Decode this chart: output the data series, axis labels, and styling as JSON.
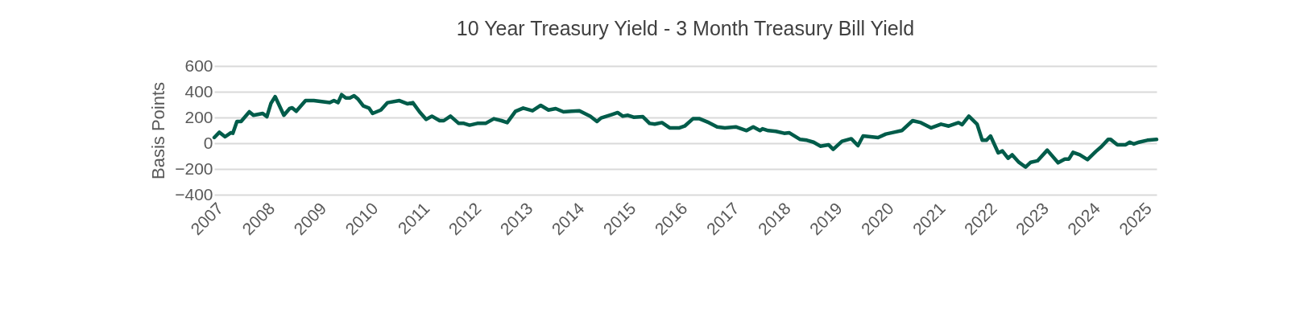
{
  "chart_data": {
    "type": "line",
    "title": "10 Year Treasury Yield - 3 Month Treasury Bill Yield",
    "ylabel": "Basis Points",
    "x": [
      2007.0,
      2007.1,
      2007.21,
      2007.32,
      2007.36,
      2007.44,
      2007.52,
      2007.68,
      2007.76,
      2007.94,
      2008.02,
      2008.1,
      2008.18,
      2008.35,
      2008.46,
      2008.51,
      2008.59,
      2008.77,
      2008.93,
      2009.24,
      2009.32,
      2009.4,
      2009.47,
      2009.55,
      2009.63,
      2009.71,
      2009.79,
      2009.89,
      2010.0,
      2010.07,
      2010.23,
      2010.36,
      2010.59,
      2010.75,
      2010.85,
      2010.98,
      2011.11,
      2011.22,
      2011.37,
      2011.45,
      2011.58,
      2011.74,
      2011.84,
      2011.95,
      2012.1,
      2012.26,
      2012.42,
      2012.57,
      2012.68,
      2012.84,
      2012.99,
      2013.17,
      2013.33,
      2013.48,
      2013.62,
      2013.77,
      2013.93,
      2014.08,
      2014.29,
      2014.42,
      2014.5,
      2014.71,
      2014.82,
      2014.92,
      2015.02,
      2015.13,
      2015.31,
      2015.44,
      2015.54,
      2015.68,
      2015.83,
      2016.02,
      2016.12,
      2016.28,
      2016.41,
      2016.59,
      2016.75,
      2016.9,
      2017.11,
      2017.32,
      2017.45,
      2017.58,
      2017.63,
      2017.74,
      2017.89,
      2018.05,
      2018.15,
      2018.36,
      2018.49,
      2018.62,
      2018.75,
      2018.91,
      2019.0,
      2019.17,
      2019.35,
      2019.48,
      2019.58,
      2019.87,
      2020.02,
      2020.18,
      2020.33,
      2020.54,
      2020.7,
      2020.9,
      2021.09,
      2021.24,
      2021.43,
      2021.5,
      2021.63,
      2021.79,
      2021.89,
      2021.97,
      2022.05,
      2022.2,
      2022.28,
      2022.39,
      2022.47,
      2022.6,
      2022.73,
      2022.83,
      2022.96,
      2023.15,
      2023.36,
      2023.49,
      2023.57,
      2023.65,
      2023.78,
      2023.93,
      2024.09,
      2024.2,
      2024.33,
      2024.38,
      2024.51,
      2024.67,
      2024.75,
      2024.83,
      2024.93,
      2025.09,
      2025.27
    ],
    "series": [
      {
        "color": "#005c4a",
        "values": [
          44,
          85,
          50,
          81,
          77,
          169,
          169,
          244,
          217,
          231,
          206,
          310,
          362,
          217,
          269,
          275,
          248,
          331,
          331,
          315,
          331,
          315,
          377,
          352,
          352,
          369,
          342,
          290,
          273,
          231,
          258,
          315,
          331,
          306,
          315,
          244,
          185,
          210,
          175,
          175,
          210,
          154,
          154,
          140,
          154,
          154,
          190,
          175,
          160,
          248,
          273,
          252,
          294,
          258,
          269,
          244,
          248,
          252,
          210,
          169,
          196,
          223,
          238,
          210,
          217,
          202,
          206,
          154,
          148,
          160,
          119,
          119,
          133,
          190,
          190,
          160,
          127,
          119,
          127,
          98,
          127,
          98,
          112,
          98,
          92,
          77,
          81,
          29,
          23,
          8,
          -23,
          -12,
          -48,
          15,
          35,
          -19,
          56,
          44,
          71,
          85,
          98,
          175,
          160,
          119,
          148,
          133,
          160,
          144,
          210,
          148,
          23,
          23,
          56,
          -75,
          -60,
          -117,
          -90,
          -148,
          -185,
          -148,
          -137,
          -54,
          -152,
          -123,
          -123,
          -71,
          -90,
          -127,
          -65,
          -27,
          29,
          29,
          -12,
          -12,
          8,
          -6,
          8,
          23,
          29
        ]
      }
    ],
    "xlim": [
      2007.0,
      2025.27
    ],
    "xticks": [
      2007,
      2008,
      2009,
      2010,
      2011,
      2012,
      2013,
      2014,
      2015,
      2016,
      2017,
      2018,
      2019,
      2020,
      2021,
      2022,
      2023,
      2024,
      2025
    ],
    "ylim": [
      -400,
      600
    ],
    "yticks": [
      -400,
      -200,
      0,
      200,
      400,
      600
    ],
    "grid": "y",
    "marker": "none",
    "line_style": "solid"
  }
}
